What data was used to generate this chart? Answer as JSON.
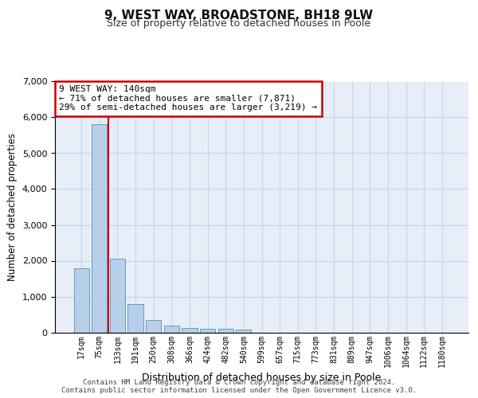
{
  "title_line1": "9, WEST WAY, BROADSTONE, BH18 9LW",
  "title_line2": "Size of property relative to detached houses in Poole",
  "xlabel": "Distribution of detached houses by size in Poole",
  "ylabel": "Number of detached properties",
  "bar_labels": [
    "17sqm",
    "75sqm",
    "133sqm",
    "191sqm",
    "250sqm",
    "308sqm",
    "366sqm",
    "424sqm",
    "482sqm",
    "540sqm",
    "599sqm",
    "657sqm",
    "715sqm",
    "773sqm",
    "831sqm",
    "889sqm",
    "947sqm",
    "1006sqm",
    "1064sqm",
    "1122sqm",
    "1180sqm"
  ],
  "bar_values": [
    1800,
    5800,
    2050,
    800,
    340,
    190,
    115,
    100,
    90,
    80,
    0,
    0,
    0,
    0,
    0,
    0,
    0,
    0,
    0,
    0,
    0
  ],
  "bar_color": "#b8cfe8",
  "bar_edge_color": "#6699cc",
  "red_line_x": 1.5,
  "annotation_text": "9 WEST WAY: 140sqm\n← 71% of detached houses are smaller (7,871)\n29% of semi-detached houses are larger (3,219) →",
  "annotation_box_color": "#ffffff",
  "annotation_box_edge_color": "#cc0000",
  "ylim": [
    0,
    7000
  ],
  "yticks": [
    0,
    1000,
    2000,
    3000,
    4000,
    5000,
    6000,
    7000
  ],
  "grid_color": "#c8d4e8",
  "background_color": "#e8eef8",
  "footer_line1": "Contains HM Land Registry data © Crown copyright and database right 2024.",
  "footer_line2": "Contains public sector information licensed under the Open Government Licence v3.0."
}
